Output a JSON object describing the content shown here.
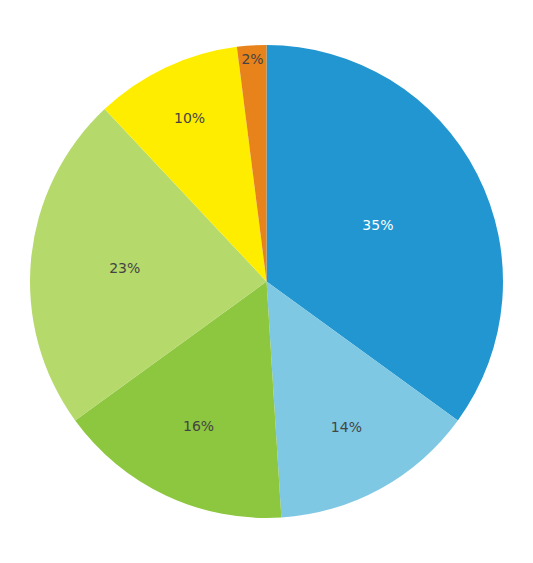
{
  "chart_data": {
    "type": "pie",
    "values": [
      35,
      14,
      16,
      23,
      10,
      2
    ],
    "value_labels": [
      "35%",
      "14%",
      "16%",
      "23%",
      "10%",
      "2%"
    ],
    "data_labels": true,
    "colors": [
      "#2196D0",
      "#7EC8E3",
      "#8DC63F",
      "#B5D96B",
      "#FFED00",
      "#E8821A"
    ]
  }
}
